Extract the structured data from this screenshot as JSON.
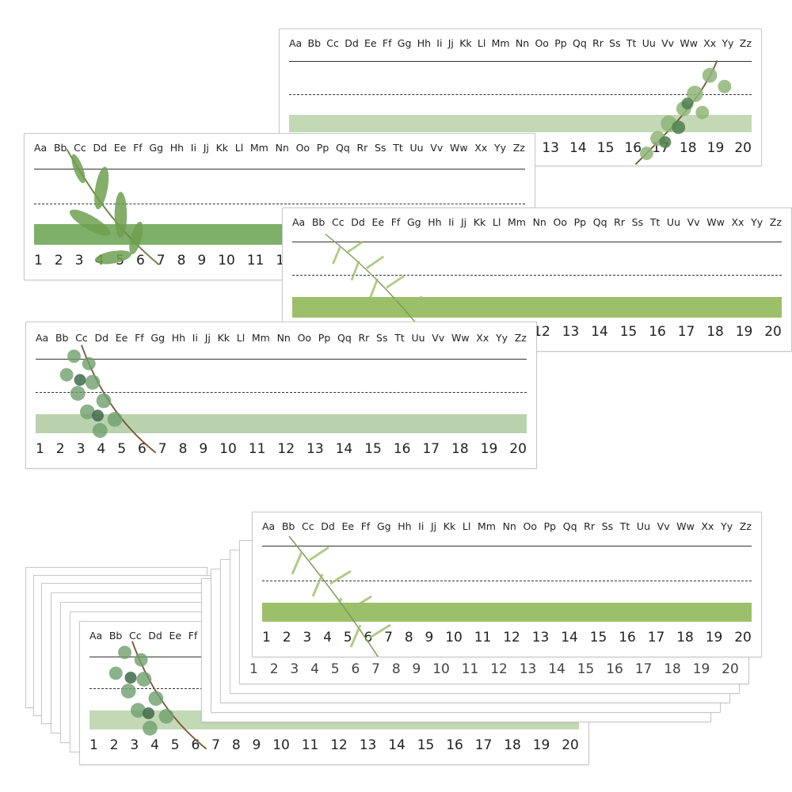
{
  "strip": {
    "alphabet": [
      "Aa",
      "Bb",
      "Cc",
      "Dd",
      "Ee",
      "Ff",
      "Gg",
      "Hh",
      "Ii",
      "Jj",
      "Kk",
      "Ll",
      "Mm",
      "Nn",
      "Oo",
      "Pp",
      "Qq",
      "Rr",
      "Ss",
      "Tt",
      "Uu",
      "Vv",
      "Ww",
      "Xx",
      "Yy",
      "Zz"
    ],
    "numbers": [
      "1",
      "2",
      "3",
      "4",
      "5",
      "6",
      "7",
      "8",
      "9",
      "10",
      "11",
      "12",
      "13",
      "14",
      "15",
      "16",
      "17",
      "18",
      "19",
      "20"
    ]
  },
  "colors": {
    "sage_light": "#b9d2ad",
    "sage_mid": "#9cbf84",
    "sage_band_pale": "#c3d9b6",
    "leaf_dark": "#4f7f4e",
    "leaf_light": "#8fb678",
    "text": "#222222"
  },
  "decorations": [
    "eucalyptus-branch",
    "olive-branch",
    "fern-sprig",
    "eucalyptus-cluster"
  ]
}
